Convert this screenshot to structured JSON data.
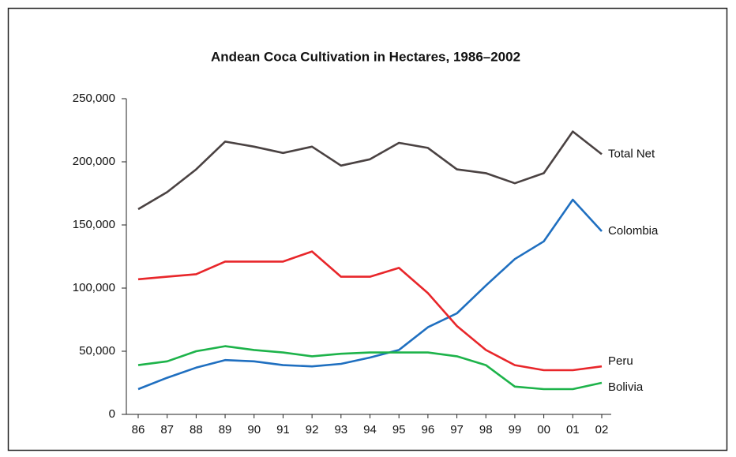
{
  "chart_data": {
    "type": "line",
    "title": "Andean Coca Cultivation in Hectares, 1986–2002",
    "categories": [
      "86",
      "87",
      "88",
      "89",
      "90",
      "91",
      "92",
      "93",
      "94",
      "95",
      "96",
      "97",
      "98",
      "99",
      "00",
      "01",
      "02"
    ],
    "series": [
      {
        "name": "Total Net",
        "color": "#4a4242",
        "values": [
          162500,
          176000,
          194000,
          216000,
          212000,
          207000,
          212000,
          197000,
          202000,
          215000,
          211000,
          194000,
          191000,
          183000,
          191000,
          224000,
          206000
        ]
      },
      {
        "name": "Colombia",
        "color": "#1f6fc0",
        "values": [
          20000,
          29000,
          37000,
          43000,
          42000,
          39000,
          38000,
          40000,
          45000,
          51000,
          69000,
          80000,
          102000,
          123000,
          137000,
          170000,
          145000
        ]
      },
      {
        "name": "Peru",
        "color": "#e8262a",
        "values": [
          107000,
          109000,
          111000,
          121000,
          121000,
          121000,
          129000,
          109000,
          109000,
          116000,
          96000,
          70000,
          51000,
          39000,
          35000,
          35000,
          38000
        ]
      },
      {
        "name": "Bolivia",
        "color": "#1db34a",
        "values": [
          39000,
          42000,
          50000,
          54000,
          51000,
          49000,
          46000,
          48000,
          49000,
          49000,
          49000,
          46000,
          39000,
          22000,
          20000,
          20000,
          25000
        ]
      }
    ],
    "ylim": [
      0,
      250000
    ],
    "yticks": [
      0,
      {
        "value": 50000,
        "label": "50,000"
      },
      {
        "value": 100000,
        "label": "100,000"
      },
      {
        "value": 150000,
        "label": "150,000"
      },
      {
        "value": 200000,
        "label": "200,000"
      },
      {
        "value": 250000,
        "label": "250,000"
      }
    ]
  }
}
